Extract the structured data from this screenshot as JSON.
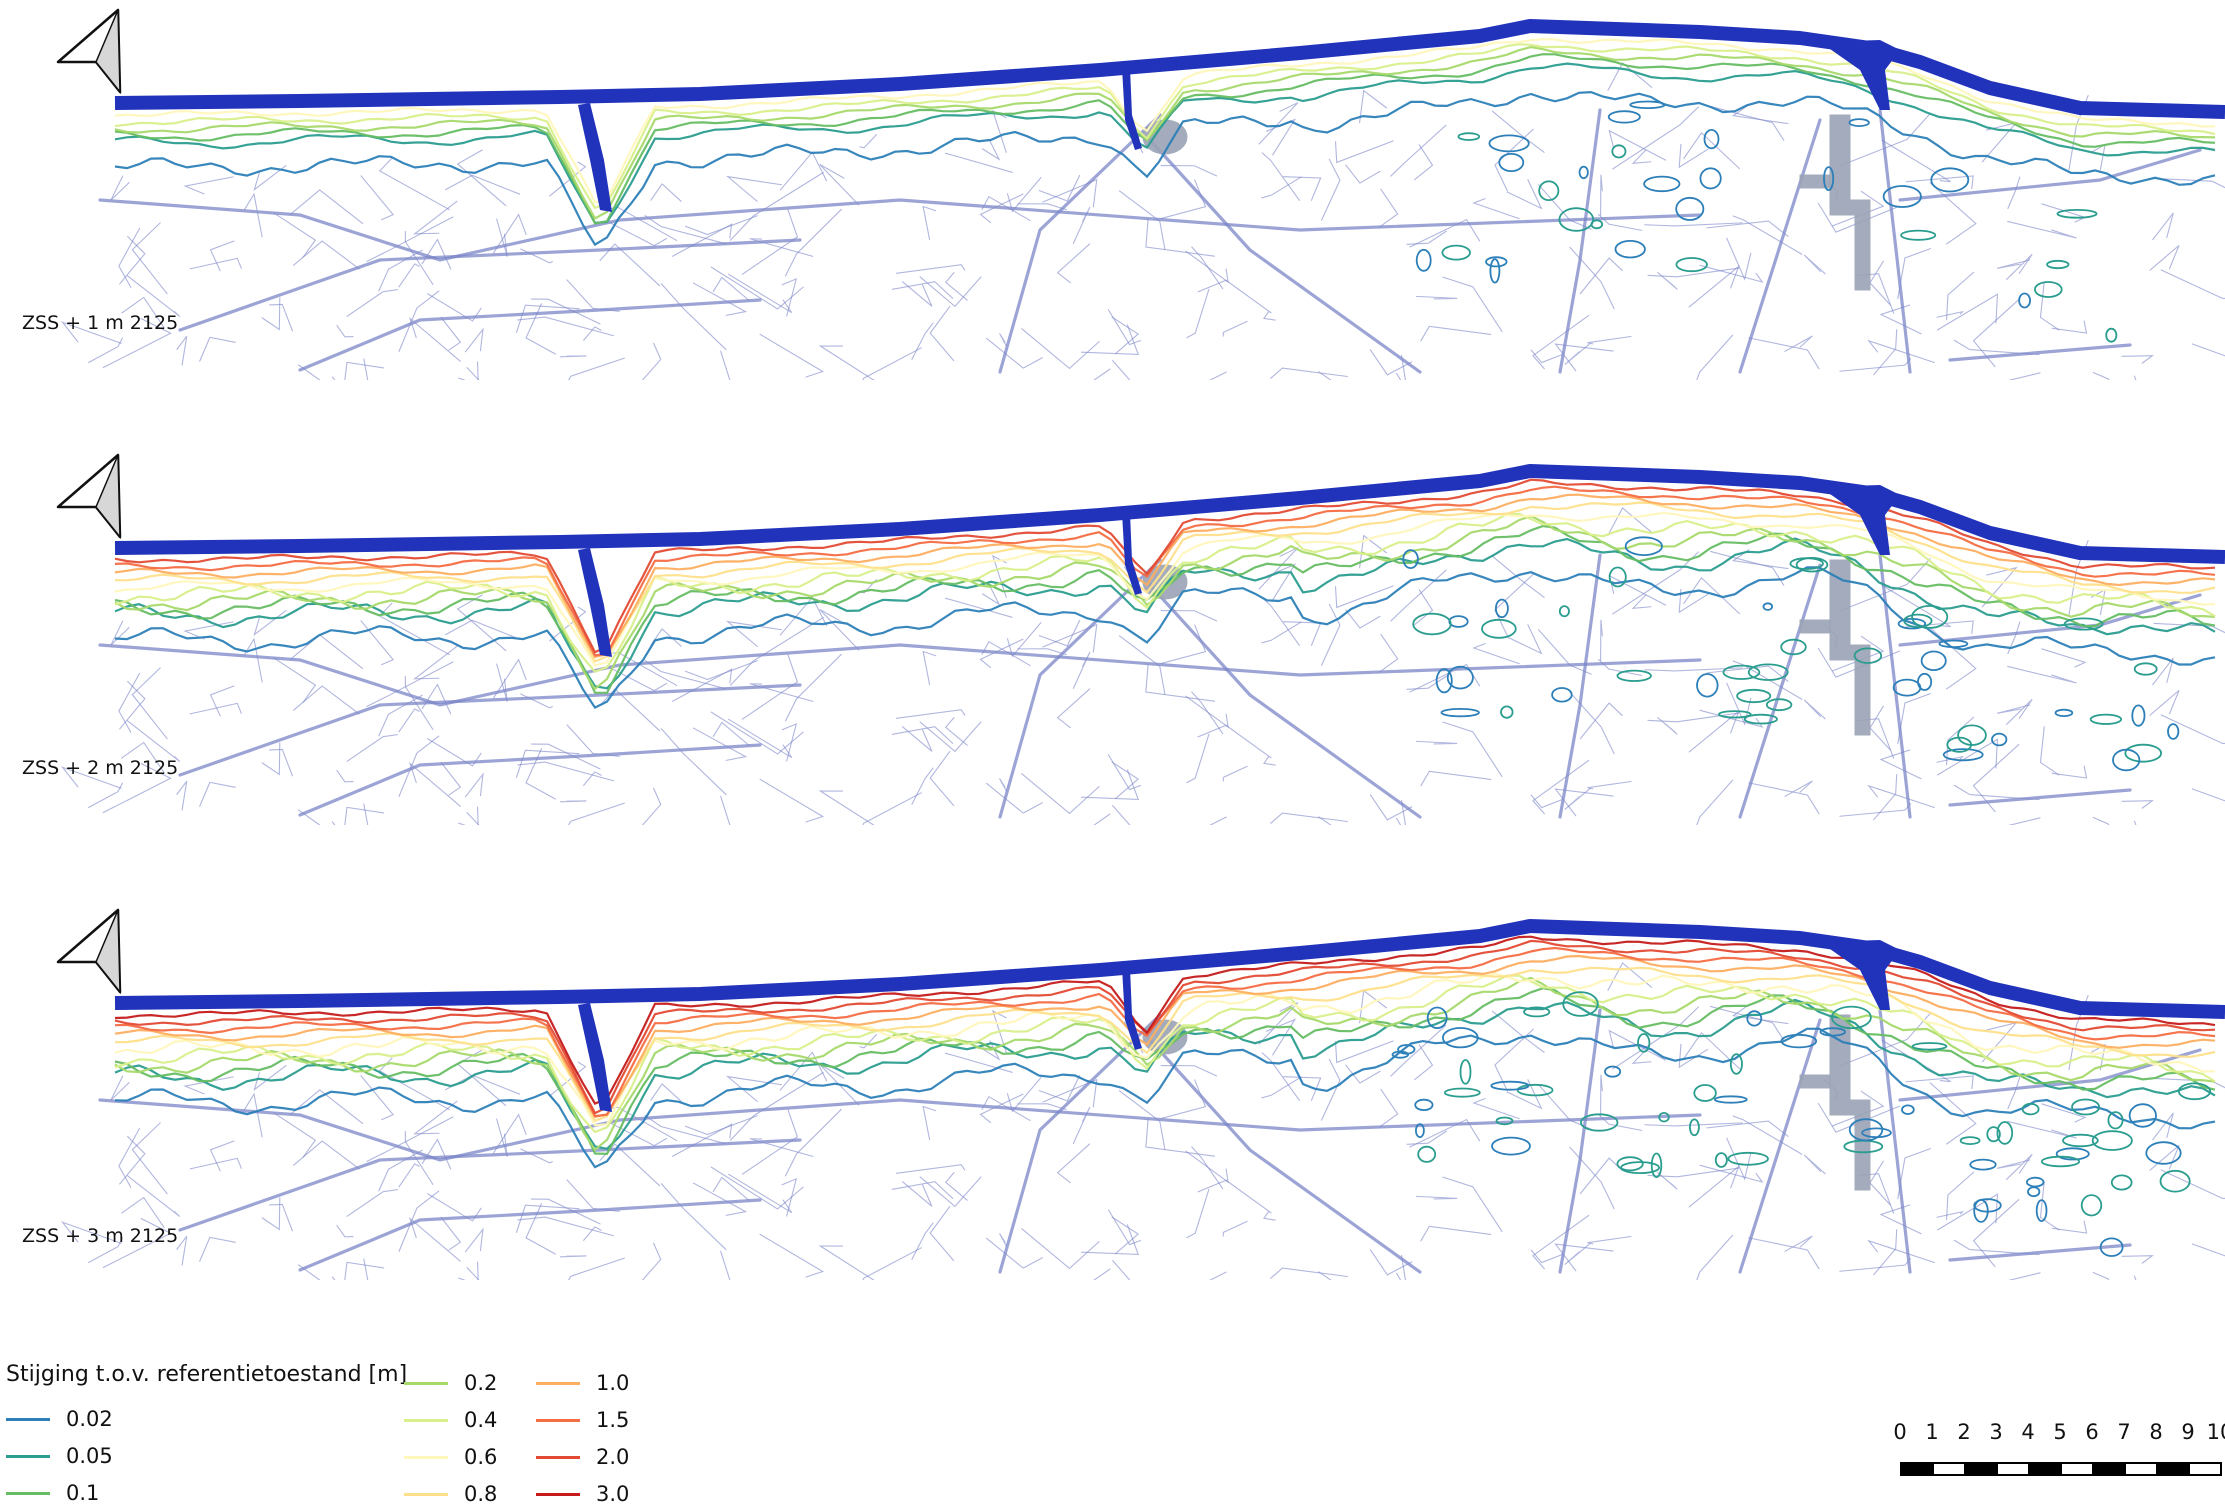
{
  "panels": [
    {
      "label": "ZSS + 1 m 2125",
      "max_level_index": 5
    },
    {
      "label": "ZSS + 2 m 2125",
      "max_level_index": 9
    },
    {
      "label": "ZSS + 3 m 2125",
      "max_level_index": 10
    }
  ],
  "legend": {
    "title": "Stijging t.o.v. referentietoestand [m]",
    "levels": [
      {
        "label": "0.02",
        "color": "#2c7fb8"
      },
      {
        "label": "0.05",
        "color": "#2a9d8f"
      },
      {
        "label": "0.1",
        "color": "#66bd63"
      },
      {
        "label": "0.2",
        "color": "#a6d96a"
      },
      {
        "label": "0.4",
        "color": "#d9ef8b"
      },
      {
        "label": "0.6",
        "color": "#fff7bc"
      },
      {
        "label": "0.8",
        "color": "#fee08b"
      },
      {
        "label": "1.0",
        "color": "#fdae61"
      },
      {
        "label": "1.5",
        "color": "#f46d43"
      },
      {
        "label": "2.0",
        "color": "#e34a33"
      },
      {
        "label": "3.0",
        "color": "#c51b1b"
      }
    ]
  },
  "scalebar": {
    "ticks": [
      "0",
      "1",
      "2",
      "3",
      "4",
      "5",
      "6",
      "7",
      "8",
      "9",
      "10"
    ]
  },
  "colors": {
    "sea_dike": "#2233bb",
    "roads": "#7b86c8",
    "harbor": "#9aa3b5"
  },
  "icons": {
    "north_arrow": "north-arrow-icon"
  }
}
